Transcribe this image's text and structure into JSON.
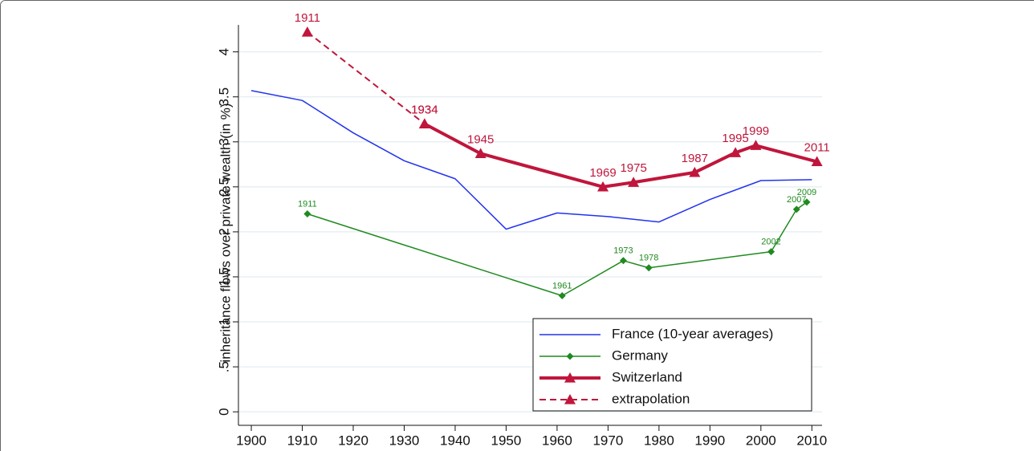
{
  "chart_data": {
    "type": "line",
    "y_label": "inheritance flows over private wealth (in %)",
    "xlim": [
      1897,
      2012
    ],
    "ylim": [
      -0.15,
      4.3
    ],
    "xticks": [
      1900,
      1910,
      1920,
      1930,
      1940,
      1950,
      1960,
      1970,
      1980,
      1990,
      2000,
      2010
    ],
    "yticks": [
      0,
      {
        "value": 0.5,
        "label": ".5"
      },
      1,
      1.5,
      2,
      2.5,
      3,
      3.5,
      4
    ],
    "grid": true,
    "legend": "lower right",
    "series": [
      {
        "name": "France (10-year averages)",
        "color": "#2233ee",
        "width": 1.5,
        "marker": "none",
        "dash": false,
        "point_labels": false,
        "x": [
          1900,
          1910,
          1920,
          1930,
          1940,
          1950,
          1960,
          1970,
          1980,
          1990,
          2000,
          2010
        ],
        "values": [
          3.57,
          3.46,
          3.1,
          2.79,
          2.59,
          2.03,
          2.21,
          2.17,
          2.11,
          2.36,
          2.57,
          2.58
        ]
      },
      {
        "name": "Germany",
        "color": "#1f8a1f",
        "width": 1.5,
        "marker": "diamond",
        "dash": false,
        "point_labels": true,
        "x": [
          1911,
          1961,
          1973,
          1978,
          2002,
          2007,
          2009
        ],
        "values": [
          2.2,
          1.29,
          1.68,
          1.6,
          1.78,
          2.25,
          2.33
        ]
      },
      {
        "name": "Switzerland",
        "color": "#c0163c",
        "width": 4,
        "marker": "triangle",
        "dash": false,
        "point_labels": true,
        "x": [
          1934,
          1945,
          1969,
          1975,
          1987,
          1995,
          1999,
          2011
        ],
        "values": [
          3.2,
          2.87,
          2.5,
          2.55,
          2.66,
          2.88,
          2.96,
          2.78
        ]
      },
      {
        "name": "extrapolation",
        "color": "#c0163c",
        "width": 2,
        "marker": "triangle",
        "dash": true,
        "point_labels": true,
        "x": [
          1911,
          1934
        ],
        "values": [
          4.22,
          3.2
        ]
      }
    ]
  }
}
